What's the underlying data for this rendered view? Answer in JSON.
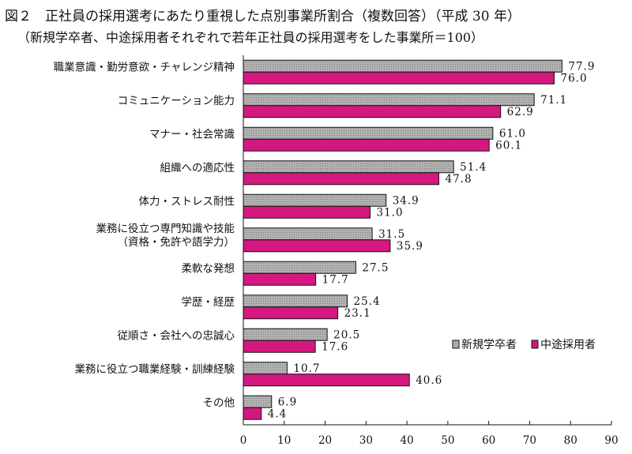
{
  "header": {
    "title": "図２　正社員の採用選考にあたり重視した点別事業所割合（複数回答）（平成 30 年）",
    "subtitle": "（新規学卒者、中途採用者それぞれで若年正社員の採用選考をした事業所＝100）"
  },
  "colors": {
    "new_graduate": "#a9a9a9",
    "mid_career": "#d4187f"
  },
  "chart_data": {
    "type": "bar",
    "orientation": "horizontal",
    "title": "図２　正社員の採用選考にあたり重視した点別事業所割合（複数回答）（平成 30 年）",
    "subtitle": "（新規学卒者、中途採用者それぞれで若年正社員の採用選考をした事業所＝100）",
    "categories": [
      [
        "職業意識・勤労意欲・チャレンジ精神"
      ],
      [
        "コミュニケーション能力"
      ],
      [
        "マナー・社会常識"
      ],
      [
        "組織への適応性"
      ],
      [
        "体力・ストレス耐性"
      ],
      [
        "業務に役立つ専門知識や技能",
        "（資格・免許や語学力）"
      ],
      [
        "柔軟な発想"
      ],
      [
        "学歴・経歴"
      ],
      [
        "従順さ・会社への忠誠心"
      ],
      [
        "業務に役立つ職業経験・訓練経験"
      ],
      [
        "その他"
      ]
    ],
    "series": [
      {
        "name": "新規学卒者",
        "values": [
          77.9,
          71.1,
          61.0,
          51.4,
          34.9,
          31.5,
          27.5,
          25.4,
          20.5,
          10.7,
          6.9
        ]
      },
      {
        "name": "中途採用者",
        "values": [
          76.0,
          62.9,
          60.1,
          47.8,
          31.0,
          35.9,
          17.7,
          23.1,
          17.6,
          40.6,
          4.4
        ]
      }
    ],
    "value_labels": [
      [
        "77.9",
        "71.1",
        "61.0",
        "51.4",
        "34.9",
        "31.5",
        "27.5",
        "25.4",
        "20.5",
        "10.7",
        "6.9"
      ],
      [
        "76.0",
        "62.9",
        "60.1",
        "47.8",
        "31.0",
        "35.9",
        "17.7",
        "23.1",
        "17.6",
        "40.6",
        "4.4"
      ]
    ],
    "xlim": [
      0,
      90
    ],
    "xticks": [
      0,
      10,
      20,
      30,
      40,
      50,
      60,
      70,
      80,
      90
    ],
    "grid": false,
    "legend_position": "right"
  }
}
